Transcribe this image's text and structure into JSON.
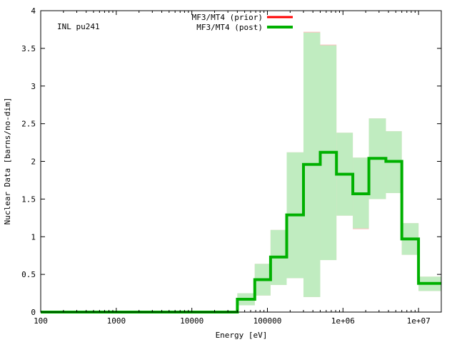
{
  "chart_data": {
    "type": "line",
    "title": "",
    "annotation": "INL pu241",
    "xlabel": "Energy [eV]",
    "ylabel": "Nuclear Data [barns/no-dim]",
    "xscale": "log",
    "xlim": [
      100,
      20000000
    ],
    "ylim": [
      0,
      4
    ],
    "x_ticks": [
      {
        "value": 100,
        "label": "100"
      },
      {
        "value": 1000,
        "label": "1000"
      },
      {
        "value": 10000,
        "label": "10000"
      },
      {
        "value": 100000,
        "label": "100000"
      },
      {
        "value": 1000000,
        "label": "1e+06"
      },
      {
        "value": 10000000,
        "label": "1e+07"
      }
    ],
    "y_ticks": [
      {
        "value": 0,
        "label": "0"
      },
      {
        "value": 0.5,
        "label": "0.5"
      },
      {
        "value": 1,
        "label": "1"
      },
      {
        "value": 1.5,
        "label": "1.5"
      },
      {
        "value": 2,
        "label": "2"
      },
      {
        "value": 2.5,
        "label": "2.5"
      },
      {
        "value": 3,
        "label": "3"
      },
      {
        "value": 3.5,
        "label": "3.5"
      },
      {
        "value": 4,
        "label": "4"
      }
    ],
    "legend_position": "top-center",
    "grid": false,
    "series": [
      {
        "name": "MF3/MT4 (prior)",
        "color": "#ff0000",
        "band_color": "#ffc0c0",
        "bins": [
          {
            "lo": 100,
            "hi": 40000,
            "value": 0.0,
            "lower": 0.0,
            "upper": 0.0
          },
          {
            "lo": 40000,
            "hi": 68000,
            "value": 0.17,
            "lower": 0.09,
            "upper": 0.25
          },
          {
            "lo": 68000,
            "hi": 110000,
            "value": 0.43,
            "lower": 0.22,
            "upper": 0.64
          },
          {
            "lo": 110000,
            "hi": 180000,
            "value": 0.73,
            "lower": 0.36,
            "upper": 1.09
          },
          {
            "lo": 180000,
            "hi": 300000,
            "value": 1.29,
            "lower": 0.45,
            "upper": 2.12
          },
          {
            "lo": 300000,
            "hi": 500000,
            "value": 1.96,
            "lower": 0.2,
            "upper": 3.72
          },
          {
            "lo": 500000,
            "hi": 820000,
            "value": 2.12,
            "lower": 0.69,
            "upper": 3.55
          },
          {
            "lo": 820000,
            "hi": 1350000,
            "value": 1.83,
            "lower": 1.28,
            "upper": 2.38
          },
          {
            "lo": 1350000,
            "hi": 2200000,
            "value": 1.57,
            "lower": 1.1,
            "upper": 2.05
          },
          {
            "lo": 2200000,
            "hi": 3700000,
            "value": 2.04,
            "lower": 1.5,
            "upper": 2.57
          },
          {
            "lo": 3700000,
            "hi": 6000000,
            "value": 2.0,
            "lower": 1.58,
            "upper": 2.4
          },
          {
            "lo": 6000000,
            "hi": 10000000,
            "value": 0.97,
            "lower": 0.76,
            "upper": 1.18
          },
          {
            "lo": 10000000,
            "hi": 20000000,
            "value": 0.38,
            "lower": 0.28,
            "upper": 0.47
          }
        ]
      },
      {
        "name": "MF3/MT4 (post)",
        "color": "#00b000",
        "band_color": "#c0ecc0",
        "bins": [
          {
            "lo": 100,
            "hi": 40000,
            "value": 0.0,
            "lower": 0.0,
            "upper": 0.0
          },
          {
            "lo": 40000,
            "hi": 68000,
            "value": 0.17,
            "lower": 0.09,
            "upper": 0.25
          },
          {
            "lo": 68000,
            "hi": 110000,
            "value": 0.43,
            "lower": 0.22,
            "upper": 0.64
          },
          {
            "lo": 110000,
            "hi": 180000,
            "value": 0.73,
            "lower": 0.36,
            "upper": 1.09
          },
          {
            "lo": 180000,
            "hi": 300000,
            "value": 1.29,
            "lower": 0.45,
            "upper": 2.12
          },
          {
            "lo": 300000,
            "hi": 500000,
            "value": 1.96,
            "lower": 0.2,
            "upper": 3.71
          },
          {
            "lo": 500000,
            "hi": 820000,
            "value": 2.12,
            "lower": 0.69,
            "upper": 3.54
          },
          {
            "lo": 820000,
            "hi": 1350000,
            "value": 1.83,
            "lower": 1.28,
            "upper": 2.38
          },
          {
            "lo": 1350000,
            "hi": 2200000,
            "value": 1.57,
            "lower": 1.11,
            "upper": 2.05
          },
          {
            "lo": 2200000,
            "hi": 3700000,
            "value": 2.04,
            "lower": 1.5,
            "upper": 2.57
          },
          {
            "lo": 3700000,
            "hi": 6000000,
            "value": 2.0,
            "lower": 1.58,
            "upper": 2.4
          },
          {
            "lo": 6000000,
            "hi": 10000000,
            "value": 0.97,
            "lower": 0.76,
            "upper": 1.18
          },
          {
            "lo": 10000000,
            "hi": 20000000,
            "value": 0.38,
            "lower": 0.28,
            "upper": 0.47
          }
        ]
      }
    ]
  }
}
